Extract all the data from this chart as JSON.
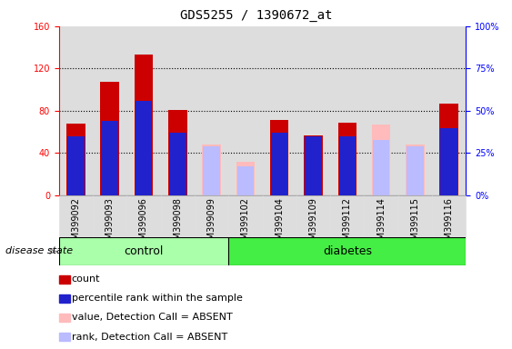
{
  "title": "GDS5255 / 1390672_at",
  "samples": [
    "GSM399092",
    "GSM399093",
    "GSM399096",
    "GSM399098",
    "GSM399099",
    "GSM399102",
    "GSM399104",
    "GSM399109",
    "GSM399112",
    "GSM399114",
    "GSM399115",
    "GSM399116"
  ],
  "groups": [
    "control",
    "control",
    "control",
    "control",
    "control",
    "diabetes",
    "diabetes",
    "diabetes",
    "diabetes",
    "diabetes",
    "diabetes",
    "diabetes"
  ],
  "count_values": [
    68,
    107,
    133,
    81,
    0,
    0,
    71,
    57,
    69,
    0,
    0,
    87
  ],
  "percentile_values": [
    35,
    44,
    56,
    37,
    0,
    0,
    37,
    35,
    35,
    0,
    0,
    40
  ],
  "absent_value_values": [
    0,
    0,
    0,
    0,
    48,
    32,
    0,
    0,
    0,
    67,
    48,
    0
  ],
  "absent_rank_values": [
    0,
    0,
    0,
    0,
    29,
    17,
    0,
    0,
    0,
    33,
    29,
    0
  ],
  "ylim_left": [
    0,
    160
  ],
  "ylim_right": [
    0,
    100
  ],
  "yticks_left": [
    0,
    40,
    80,
    120,
    160
  ],
  "yticks_right": [
    0,
    25,
    50,
    75,
    100
  ],
  "ytick_labels_right": [
    "0%",
    "25%",
    "50%",
    "75%",
    "100%"
  ],
  "color_count": "#cc0000",
  "color_percentile": "#2222cc",
  "color_absent_value": "#ffbbbb",
  "color_absent_rank": "#bbbbff",
  "color_control_bg": "#aaffaa",
  "color_diabetes_bg": "#44ee44",
  "color_sample_bg": "#dddddd",
  "bar_width": 0.55,
  "grid_color": "black",
  "tick_fontsize": 7,
  "title_fontsize": 10,
  "legend_fontsize": 8,
  "disease_state_label": "disease state",
  "control_label": "control",
  "diabetes_label": "diabetes",
  "n_control": 5,
  "n_total": 12
}
